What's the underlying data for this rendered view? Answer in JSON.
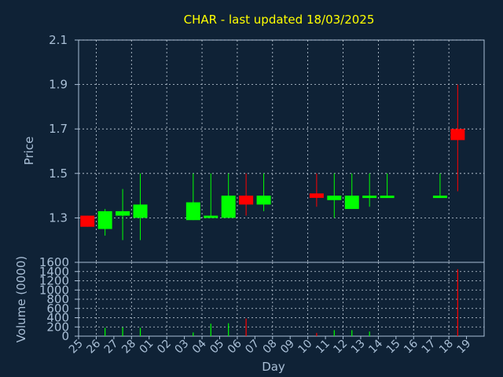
{
  "chart_data": [
    {
      "type": "candlestick",
      "title": "CHAR - last updated 18/03/2025",
      "ylabel": "Price",
      "ylim": [
        1.1,
        2.1
      ],
      "yticks": [
        "2.1",
        "1.9",
        "1.7",
        "1.5",
        "1.3"
      ],
      "ytick_values": [
        2.1,
        1.9,
        1.7,
        1.5,
        1.3
      ],
      "grid": true,
      "up_color": "#00ff00",
      "down_color": "#ff0000",
      "candles": [
        {
          "day": "25",
          "open": 1.31,
          "high": 1.31,
          "low": 1.26,
          "close": 1.26
        },
        {
          "day": "26",
          "open": 1.25,
          "high": 1.34,
          "low": 1.22,
          "close": 1.33
        },
        {
          "day": "27",
          "open": 1.31,
          "high": 1.43,
          "low": 1.2,
          "close": 1.33
        },
        {
          "day": "28",
          "open": 1.3,
          "high": 1.5,
          "low": 1.2,
          "close": 1.36
        },
        {
          "day": "03",
          "open": 1.29,
          "high": 1.5,
          "low": 1.29,
          "close": 1.37
        },
        {
          "day": "04",
          "open": 1.3,
          "high": 1.5,
          "low": 1.3,
          "close": 1.31
        },
        {
          "day": "05",
          "open": 1.3,
          "high": 1.5,
          "low": 1.3,
          "close": 1.4
        },
        {
          "day": "06",
          "open": 1.4,
          "high": 1.5,
          "low": 1.31,
          "close": 1.36
        },
        {
          "day": "07",
          "open": 1.36,
          "high": 1.5,
          "low": 1.33,
          "close": 1.4
        },
        {
          "day": "10",
          "open": 1.41,
          "high": 1.5,
          "low": 1.35,
          "close": 1.39
        },
        {
          "day": "11",
          "open": 1.38,
          "high": 1.5,
          "low": 1.3,
          "close": 1.4
        },
        {
          "day": "12",
          "open": 1.34,
          "high": 1.5,
          "low": 1.34,
          "close": 1.4
        },
        {
          "day": "13",
          "open": 1.4,
          "high": 1.5,
          "low": 1.35,
          "close": 1.4
        },
        {
          "day": "14",
          "open": 1.4,
          "high": 1.5,
          "low": 1.4,
          "close": 1.4
        },
        {
          "day": "17",
          "open": 1.4,
          "high": 1.5,
          "low": 1.4,
          "close": 1.4
        },
        {
          "day": "18",
          "open": 1.7,
          "high": 1.9,
          "low": 1.42,
          "close": 1.65
        }
      ]
    },
    {
      "type": "bar",
      "ylabel": "Volume (0000)",
      "xlabel": "Day",
      "ylim": [
        0,
        1600
      ],
      "yticks": [
        "1600",
        "1400",
        "1200",
        "1000",
        "800",
        "600",
        "400",
        "200",
        "0"
      ],
      "ytick_values": [
        1600,
        1400,
        1200,
        1000,
        800,
        600,
        400,
        200,
        0
      ],
      "categories": [
        "25",
        "26",
        "27",
        "28",
        "01",
        "02",
        "03",
        "04",
        "05",
        "06",
        "07",
        "08",
        "09",
        "10",
        "11",
        "12",
        "13",
        "14",
        "15",
        "16",
        "17",
        "18",
        "19"
      ],
      "values": [
        0,
        180,
        190,
        180,
        0,
        0,
        80,
        270,
        280,
        380,
        0,
        0,
        0,
        70,
        130,
        130,
        100,
        0,
        0,
        0,
        0,
        1450,
        0
      ],
      "colors": [
        "#00ff00",
        "#00ff00",
        "#00ff00",
        "#00ff00",
        "#00ff00",
        "#00ff00",
        "#00ff00",
        "#00ff00",
        "#00ff00",
        "#ff0000",
        "#00ff00",
        "#00ff00",
        "#00ff00",
        "#ff0000",
        "#00ff00",
        "#00ff00",
        "#00ff00",
        "#00ff00",
        "#00ff00",
        "#00ff00",
        "#00ff00",
        "#ff0000",
        "#00ff00"
      ]
    }
  ]
}
